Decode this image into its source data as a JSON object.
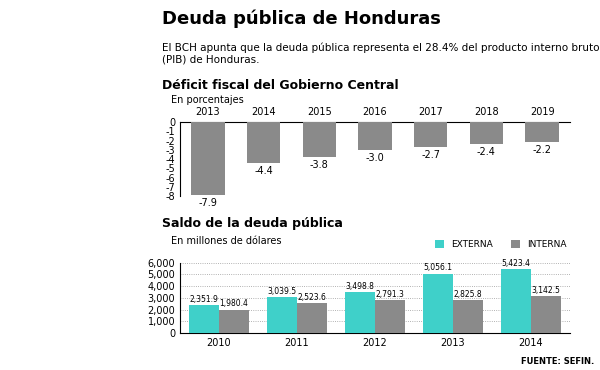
{
  "title": "Deuda pública de Honduras",
  "subtitle": "El BCH apunta que la deuda pública representa el 28.4% del producto interno bruto (PIB) de Honduras.",
  "source": "FUENTE: SEFIN.",
  "chart_data": [
    {
      "type": "bar",
      "title": "Déficit fiscal del Gobierno Central",
      "subtitle": "En porcentajes",
      "categories": [
        "2013",
        "2014",
        "2015",
        "2016",
        "2017",
        "2018",
        "2019"
      ],
      "values": [
        -7.9,
        -4.4,
        -3.8,
        -3.0,
        -2.7,
        -2.4,
        -2.2
      ],
      "color": "#8a8a8a",
      "ylim": [
        -8,
        0
      ],
      "yticks": [
        0,
        -1,
        -2,
        -3,
        -4,
        -5,
        -6,
        -7,
        -8
      ],
      "grid": false,
      "data_labels": true
    },
    {
      "type": "bar",
      "title": "Saldo de la deuda pública",
      "subtitle": "En millones de dólares",
      "categories": [
        "2010",
        "2011",
        "2012",
        "2013",
        "2014"
      ],
      "series": [
        {
          "name": "EXTERNA",
          "color": "#3fd0c9",
          "values": [
            2351.9,
            3039.5,
            3498.8,
            5056.1,
            5423.4
          ],
          "value_labels": [
            "2,351.9",
            "3,039.5",
            "3,498.8",
            "5,056.1",
            "5,423.4"
          ]
        },
        {
          "name": "INTERNA",
          "color": "#8a8a8a",
          "values": [
            1980.4,
            2523.6,
            2791.3,
            2825.8,
            3142.5
          ],
          "value_labels": [
            "1,980.4",
            "2,523.6",
            "2,791.3",
            "2,825.8",
            "3,142.5"
          ]
        }
      ],
      "ylim": [
        0,
        6000
      ],
      "yticks": [
        0,
        {
          "value": 1000,
          "label": "1,000"
        },
        {
          "value": 2000,
          "label": "2,000"
        },
        {
          "value": 3000,
          "label": "3,000"
        },
        {
          "value": 4000,
          "label": "4,000"
        },
        {
          "value": 5000,
          "label": "5,000"
        },
        {
          "value": 6000,
          "label": "6,000"
        }
      ],
      "grid": true,
      "legend": "upper right",
      "data_labels": true
    }
  ]
}
